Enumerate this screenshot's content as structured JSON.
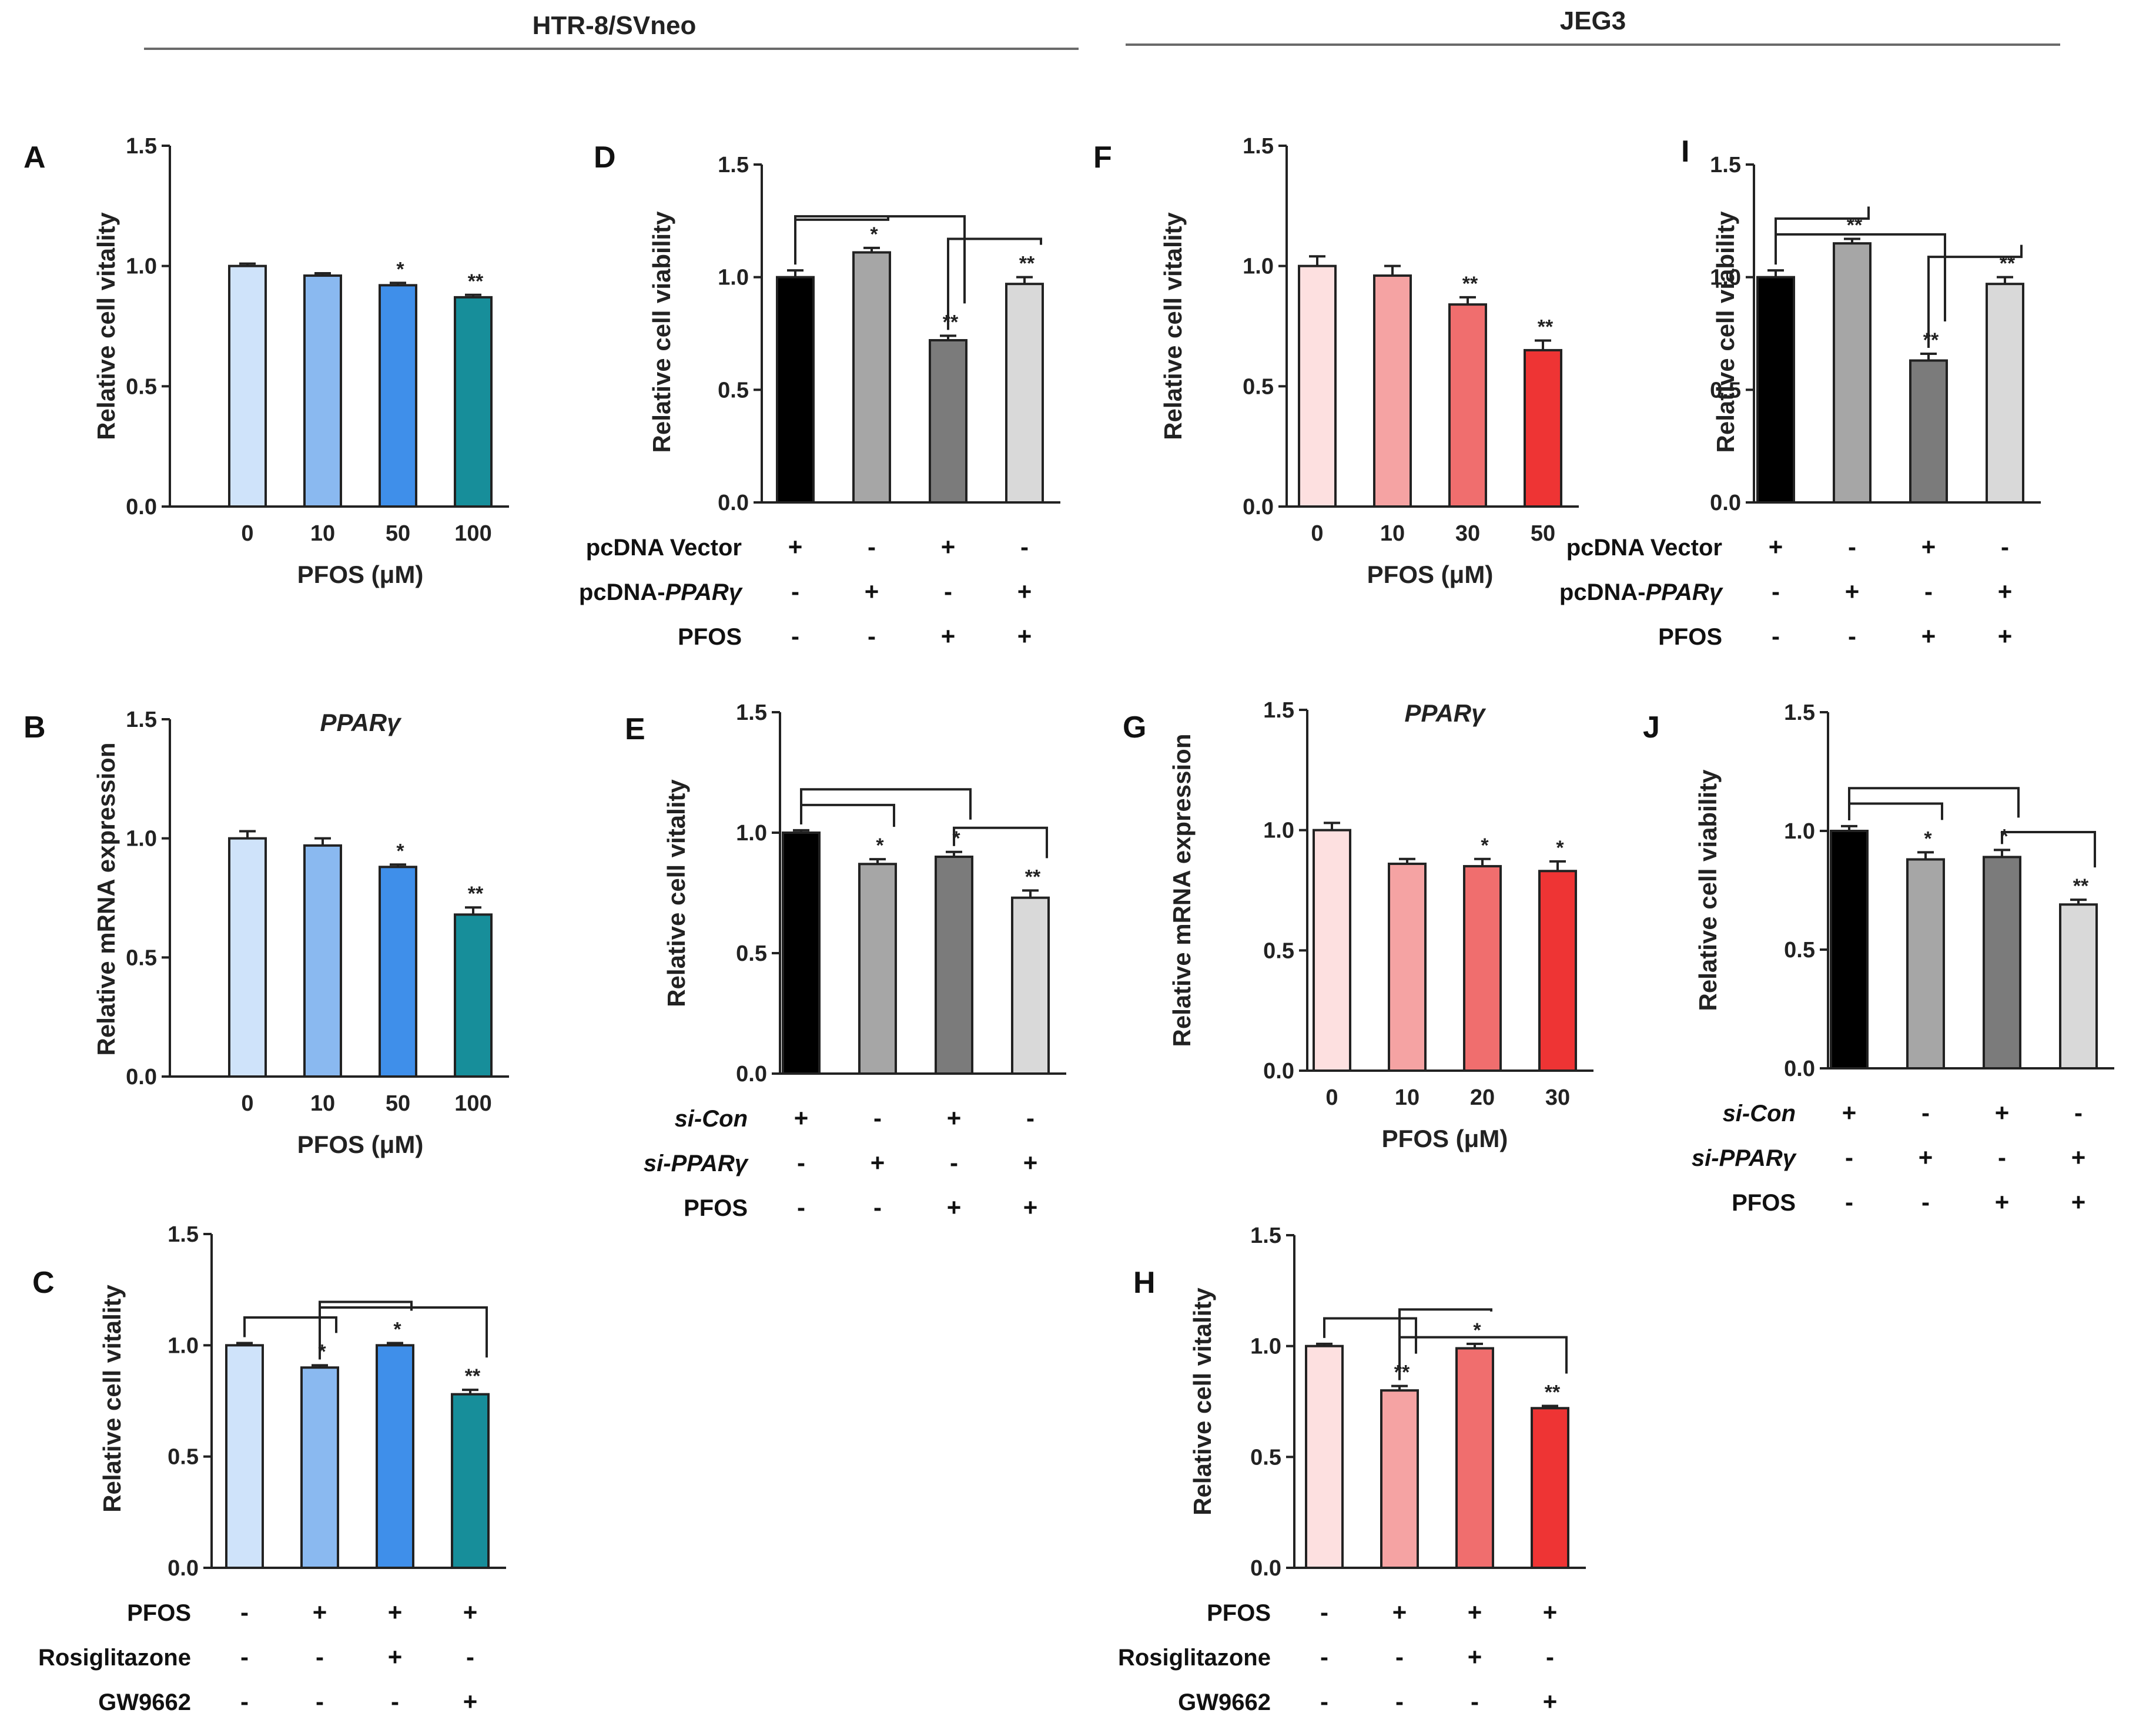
{
  "header": {
    "left": "HTR-8/SVneo",
    "right": "JEG3"
  },
  "chart_data": [
    {
      "id": "A",
      "type": "bar",
      "ylabel": "Relative cell vitality",
      "ylim": [
        0,
        1.5
      ],
      "yticks": [
        "0.0",
        "0.5",
        "1.0",
        "1.5"
      ],
      "categories": [
        "0",
        "10",
        "50",
        "100"
      ],
      "values": [
        1.0,
        0.96,
        0.92,
        0.87
      ],
      "errors": [
        0.01,
        0.01,
        0.01,
        0.01
      ],
      "colors": [
        "#cfe3fa",
        "#8ab9f0",
        "#3f8fea",
        "#178e9a"
      ],
      "significance": [
        "",
        "",
        "*",
        "**"
      ],
      "xlabel": "PFOS (μM)",
      "title": ""
    },
    {
      "id": "B",
      "type": "bar",
      "ylabel": "Relative mRNA expression",
      "ylim": [
        0,
        1.5
      ],
      "yticks": [
        "0.0",
        "0.5",
        "1.0",
        "1.5"
      ],
      "categories": [
        "0",
        "10",
        "50",
        "100"
      ],
      "values": [
        1.0,
        0.97,
        0.88,
        0.68
      ],
      "errors": [
        0.03,
        0.03,
        0.01,
        0.03
      ],
      "colors": [
        "#cfe3fa",
        "#8ab9f0",
        "#3f8fea",
        "#178e9a"
      ],
      "significance": [
        "",
        "",
        "*",
        "**"
      ],
      "xlabel": "PFOS (μM)",
      "title": "PPARγ"
    },
    {
      "id": "C",
      "type": "bar",
      "ylabel": "Relative cell vitality",
      "ylim": [
        0,
        1.5
      ],
      "yticks": [
        "0.0",
        "0.5",
        "1.0",
        "1.5"
      ],
      "categories": [
        "",
        "",
        "",
        ""
      ],
      "values": [
        1.0,
        0.9,
        1.0,
        0.78
      ],
      "errors": [
        0.01,
        0.01,
        0.01,
        0.02
      ],
      "colors": [
        "#cfe3fa",
        "#8ab9f0",
        "#3f8fea",
        "#178e9a"
      ],
      "significance": [
        "",
        "*",
        "*",
        "**"
      ],
      "conditions": [
        {
          "name": "PFOS",
          "italic": false,
          "signs": [
            "-",
            "+",
            "+",
            "+"
          ]
        },
        {
          "name": "Rosiglitazone",
          "italic": false,
          "signs": [
            "-",
            "-",
            "+",
            "-"
          ]
        },
        {
          "name": "GW9662",
          "italic": false,
          "signs": [
            "-",
            "-",
            "-",
            "+"
          ]
        }
      ],
      "title": ""
    },
    {
      "id": "D",
      "type": "bar",
      "ylabel": "Relative cell viability",
      "ylim": [
        0,
        1.5
      ],
      "yticks": [
        "0.0",
        "0.5",
        "1.0",
        "1.5"
      ],
      "categories": [
        "",
        "",
        "",
        ""
      ],
      "values": [
        1.0,
        1.11,
        0.72,
        0.97
      ],
      "errors": [
        0.03,
        0.02,
        0.02,
        0.03
      ],
      "colors": [
        "#000000",
        "#a6a6a6",
        "#7b7b7b",
        "#d9d9d9"
      ],
      "significance": [
        "",
        "*",
        "**",
        "**"
      ],
      "conditions": [
        {
          "name": "pcDNA Vector",
          "italic": false,
          "signs": [
            "+",
            "-",
            "+",
            "-"
          ]
        },
        {
          "name": "pcDNA-",
          "italic_suffix": "PPARγ",
          "italic": false,
          "signs": [
            "-",
            "+",
            "-",
            "+"
          ]
        },
        {
          "name": "PFOS",
          "italic": false,
          "signs": [
            "-",
            "-",
            "+",
            "+"
          ]
        }
      ],
      "title": ""
    },
    {
      "id": "E",
      "type": "bar",
      "ylabel": "Relative cell vitality",
      "ylim": [
        0,
        1.5
      ],
      "yticks": [
        "0.0",
        "0.5",
        "1.0",
        "1.5"
      ],
      "categories": [
        "",
        "",
        "",
        ""
      ],
      "values": [
        1.0,
        0.87,
        0.9,
        0.73
      ],
      "errors": [
        0.01,
        0.02,
        0.02,
        0.03
      ],
      "colors": [
        "#000000",
        "#a6a6a6",
        "#7b7b7b",
        "#d9d9d9"
      ],
      "significance": [
        "",
        "*",
        "*",
        "**"
      ],
      "conditions": [
        {
          "name": "si-Con",
          "italic": true,
          "signs": [
            "+",
            "-",
            "+",
            "-"
          ]
        },
        {
          "name": "si-PPARγ",
          "italic": true,
          "signs": [
            "-",
            "+",
            "-",
            "+"
          ]
        },
        {
          "name": "PFOS",
          "italic": false,
          "signs": [
            "-",
            "-",
            "+",
            "+"
          ]
        }
      ],
      "title": ""
    },
    {
      "id": "F",
      "type": "bar",
      "ylabel": "Relative cell vitality",
      "ylim": [
        0,
        1.5
      ],
      "yticks": [
        "0.0",
        "0.5",
        "1.0",
        "1.5"
      ],
      "categories": [
        "0",
        "10",
        "30",
        "50"
      ],
      "values": [
        1.0,
        0.96,
        0.84,
        0.65
      ],
      "errors": [
        0.04,
        0.04,
        0.03,
        0.04
      ],
      "colors": [
        "#fde0e0",
        "#f5a3a3",
        "#f06e6e",
        "#ee3434"
      ],
      "significance": [
        "",
        "",
        "**",
        "**"
      ],
      "xlabel": "PFOS (μM)",
      "title": ""
    },
    {
      "id": "G",
      "type": "bar",
      "ylabel": "Relative mRNA expression",
      "ylim": [
        0,
        1.5
      ],
      "yticks": [
        "0.0",
        "0.5",
        "1.0",
        "1.5"
      ],
      "categories": [
        "0",
        "10",
        "20",
        "30"
      ],
      "values": [
        1.0,
        0.86,
        0.85,
        0.83
      ],
      "errors": [
        0.03,
        0.02,
        0.03,
        0.04
      ],
      "colors": [
        "#fde0e0",
        "#f5a3a3",
        "#f06e6e",
        "#ee3434"
      ],
      "significance": [
        "",
        "",
        "*",
        "*"
      ],
      "xlabel": "PFOS (μM)",
      "title": "PPARγ"
    },
    {
      "id": "H",
      "type": "bar",
      "ylabel": "Relative cell vitality",
      "ylim": [
        0,
        1.5
      ],
      "yticks": [
        "0.0",
        "0.5",
        "1.0",
        "1.5"
      ],
      "categories": [
        "",
        "",
        "",
        ""
      ],
      "values": [
        1.0,
        0.8,
        0.99,
        0.72
      ],
      "errors": [
        0.01,
        0.02,
        0.02,
        0.01
      ],
      "colors": [
        "#fde0e0",
        "#f5a3a3",
        "#f06e6e",
        "#ee3434"
      ],
      "significance": [
        "",
        "**",
        "*",
        "**"
      ],
      "conditions": [
        {
          "name": "PFOS",
          "italic": false,
          "signs": [
            "-",
            "+",
            "+",
            "+"
          ]
        },
        {
          "name": "Rosiglitazone",
          "italic": false,
          "signs": [
            "-",
            "-",
            "+",
            "-"
          ]
        },
        {
          "name": "GW9662",
          "italic": false,
          "signs": [
            "-",
            "-",
            "-",
            "+"
          ]
        }
      ],
      "title": ""
    },
    {
      "id": "I",
      "type": "bar",
      "ylabel": "Relative cell viability",
      "ylim": [
        0,
        1.5
      ],
      "yticks": [
        "0.0",
        "0.5",
        "1.0",
        "1.5"
      ],
      "categories": [
        "",
        "",
        "",
        ""
      ],
      "values": [
        1.0,
        1.15,
        0.63,
        0.97
      ],
      "errors": [
        0.03,
        0.02,
        0.03,
        0.03
      ],
      "colors": [
        "#000000",
        "#a6a6a6",
        "#7b7b7b",
        "#d9d9d9"
      ],
      "significance": [
        "",
        "**",
        "**",
        "**"
      ],
      "conditions": [
        {
          "name": "pcDNA Vector",
          "italic": false,
          "signs": [
            "+",
            "-",
            "+",
            "-"
          ]
        },
        {
          "name": "pcDNA-",
          "italic_suffix": "PPARγ",
          "italic": false,
          "signs": [
            "-",
            "+",
            "-",
            "+"
          ]
        },
        {
          "name": "PFOS",
          "italic": false,
          "signs": [
            "-",
            "-",
            "+",
            "+"
          ]
        }
      ],
      "title": ""
    },
    {
      "id": "J",
      "type": "bar",
      "ylabel": "Relative cell viability",
      "ylim": [
        0,
        1.5
      ],
      "yticks": [
        "0.0",
        "0.5",
        "1.0",
        "1.5"
      ],
      "categories": [
        "",
        "",
        "",
        ""
      ],
      "values": [
        1.0,
        0.88,
        0.89,
        0.69
      ],
      "errors": [
        0.02,
        0.03,
        0.03,
        0.02
      ],
      "colors": [
        "#000000",
        "#a6a6a6",
        "#7b7b7b",
        "#d9d9d9"
      ],
      "significance": [
        "",
        "*",
        "*",
        "**"
      ],
      "conditions": [
        {
          "name": "si-Con",
          "italic": true,
          "signs": [
            "+",
            "-",
            "+",
            "-"
          ]
        },
        {
          "name": "si-PPARγ",
          "italic": true,
          "signs": [
            "-",
            "+",
            "-",
            "+"
          ]
        },
        {
          "name": "PFOS",
          "italic": false,
          "signs": [
            "-",
            "-",
            "+",
            "+"
          ]
        }
      ],
      "title": ""
    }
  ]
}
